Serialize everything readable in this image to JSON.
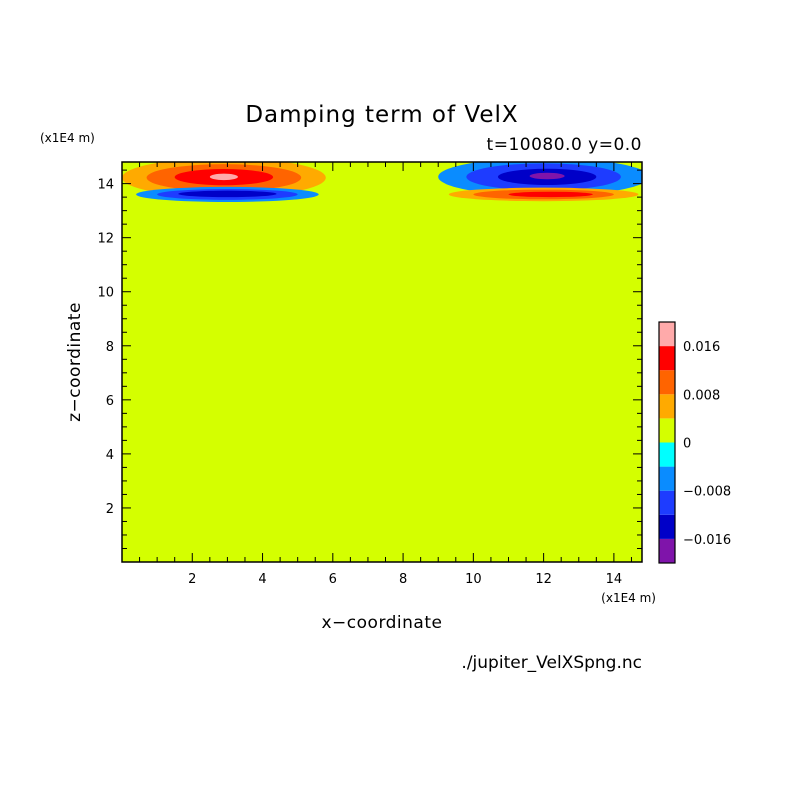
{
  "chart_data": {
    "type": "heatmap",
    "title": "Damping term of VelX",
    "subtitle": "t=10080.0 y=0.0",
    "xlabel": "x−coordinate",
    "ylabel": "z−coordinate",
    "x_unit_label": "(x1E4 m)",
    "y_unit_label": "(x1E4 m)",
    "source_label": "./jupiter_VelXSpng.nc",
    "xlim": [
      0,
      14.8
    ],
    "ylim": [
      0,
      14.8
    ],
    "x_ticks": [
      2,
      4,
      6,
      8,
      10,
      12,
      14
    ],
    "y_ticks": [
      2,
      4,
      6,
      8,
      10,
      12,
      14
    ],
    "colorbar": {
      "levels": [
        -0.02,
        -0.016,
        -0.012,
        -0.008,
        -0.004,
        0,
        0.004,
        0.008,
        0.012,
        0.016,
        0.02
      ],
      "colors": [
        "#7f14aa",
        "#0000c8",
        "#1e3cff",
        "#0a8cff",
        "#00ffff",
        "#d4ff00",
        "#ffaa00",
        "#ff6400",
        "#ff0000",
        "#ffaaaa"
      ],
      "tick_values": [
        0.016,
        0.008,
        0,
        -0.008,
        -0.016
      ],
      "tick_labels": [
        "0.016",
        "0.008",
        "0",
        "−0.008",
        "−0.016"
      ]
    },
    "background_value": 0,
    "contour_regions": [
      {
        "value": 0.005,
        "cx": 2.9,
        "cz": 14.22,
        "rx": 2.9,
        "rz": 0.72
      },
      {
        "value": 0.009,
        "cx": 2.9,
        "cz": 14.22,
        "rx": 2.2,
        "rz": 0.5
      },
      {
        "value": 0.013,
        "cx": 2.9,
        "cz": 14.24,
        "rx": 1.4,
        "rz": 0.3
      },
      {
        "value": 0.017,
        "cx": 2.9,
        "cz": 14.25,
        "rx": 0.4,
        "rz": 0.12
      },
      {
        "value": -0.005,
        "cx": 3.0,
        "cz": 13.6,
        "rx": 2.6,
        "rz": 0.28
      },
      {
        "value": -0.01,
        "cx": 3.0,
        "cz": 13.6,
        "rx": 2.0,
        "rz": 0.2
      },
      {
        "value": -0.014,
        "cx": 3.0,
        "cz": 13.62,
        "rx": 1.4,
        "rz": 0.12
      },
      {
        "value": -0.005,
        "cx": 12.0,
        "cz": 14.25,
        "rx": 3.0,
        "rz": 0.7
      },
      {
        "value": -0.01,
        "cx": 12.0,
        "cz": 14.25,
        "rx": 2.2,
        "rz": 0.5
      },
      {
        "value": -0.014,
        "cx": 12.1,
        "cz": 14.25,
        "rx": 1.4,
        "rz": 0.3
      },
      {
        "value": -0.018,
        "cx": 12.1,
        "cz": 14.28,
        "rx": 0.5,
        "rz": 0.12
      },
      {
        "value": 0.005,
        "cx": 12.0,
        "cz": 13.6,
        "rx": 2.7,
        "rz": 0.25
      },
      {
        "value": 0.009,
        "cx": 12.0,
        "cz": 13.6,
        "rx": 2.0,
        "rz": 0.18
      },
      {
        "value": 0.013,
        "cx": 12.2,
        "cz": 13.6,
        "rx": 1.2,
        "rz": 0.1
      }
    ]
  }
}
